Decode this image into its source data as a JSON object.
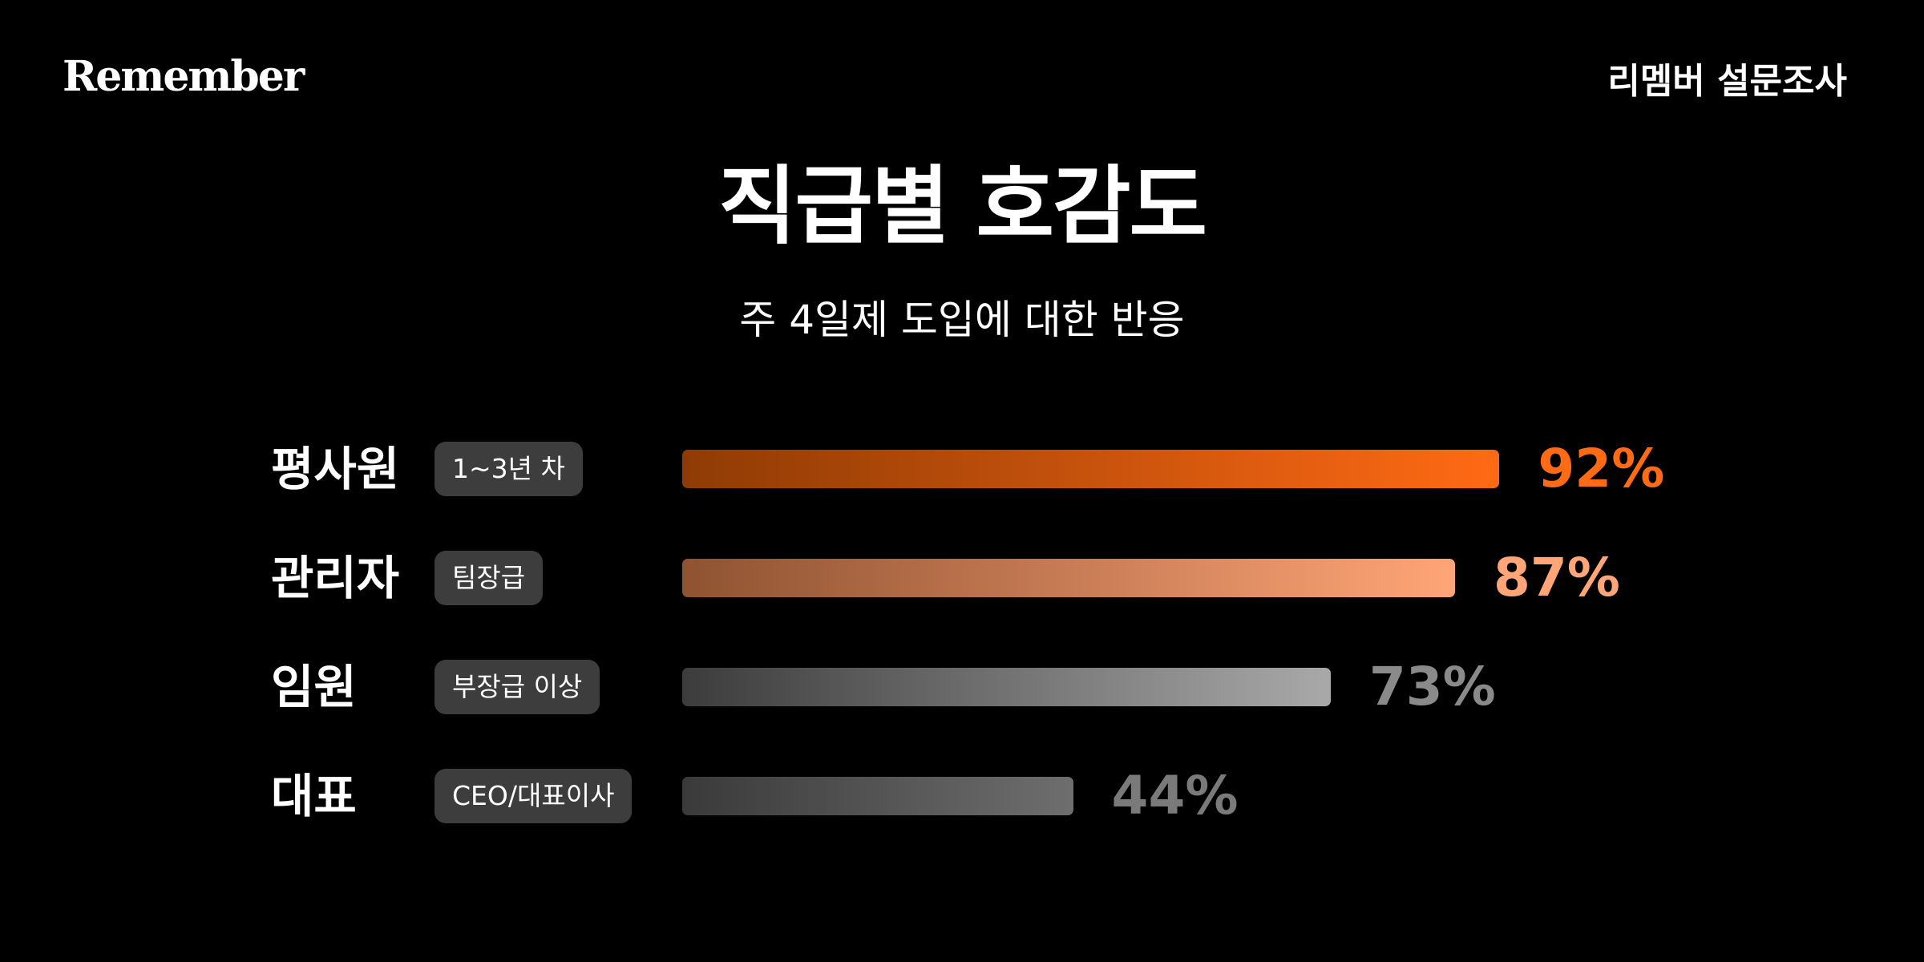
{
  "header": {
    "logo": "Remember",
    "survey_label": "리멤버 설문조사"
  },
  "title": "직급별 호감도",
  "subtitle": "주 4일제 도입에 대한 반응",
  "chart_data": {
    "type": "bar",
    "orientation": "horizontal",
    "title": "직급별 호감도",
    "subtitle": "주 4일제 도입에 대한 반응",
    "categories": [
      "평사원",
      "관리자",
      "임원",
      "대표"
    ],
    "tags": [
      "1~3년 차",
      "팀장급",
      "부장급 이상",
      "CEO/대표이사"
    ],
    "values": [
      92,
      87,
      73,
      44
    ],
    "value_labels": [
      "92%",
      "87%",
      "73%",
      "44%"
    ],
    "xlim": [
      0,
      100
    ],
    "grid": false,
    "colors": {
      "value_text": [
        "#ff6a14",
        "#ffa577",
        "#8a8a8a",
        "#7a7a7a"
      ],
      "bar_start": [
        "#8f3b05",
        "#8f5332",
        "#3c3c3c",
        "#3a3a3a"
      ],
      "bar_end": [
        "#ff6a14",
        "#ffa577",
        "#a9a9a9",
        "#6e6e6e"
      ]
    }
  }
}
